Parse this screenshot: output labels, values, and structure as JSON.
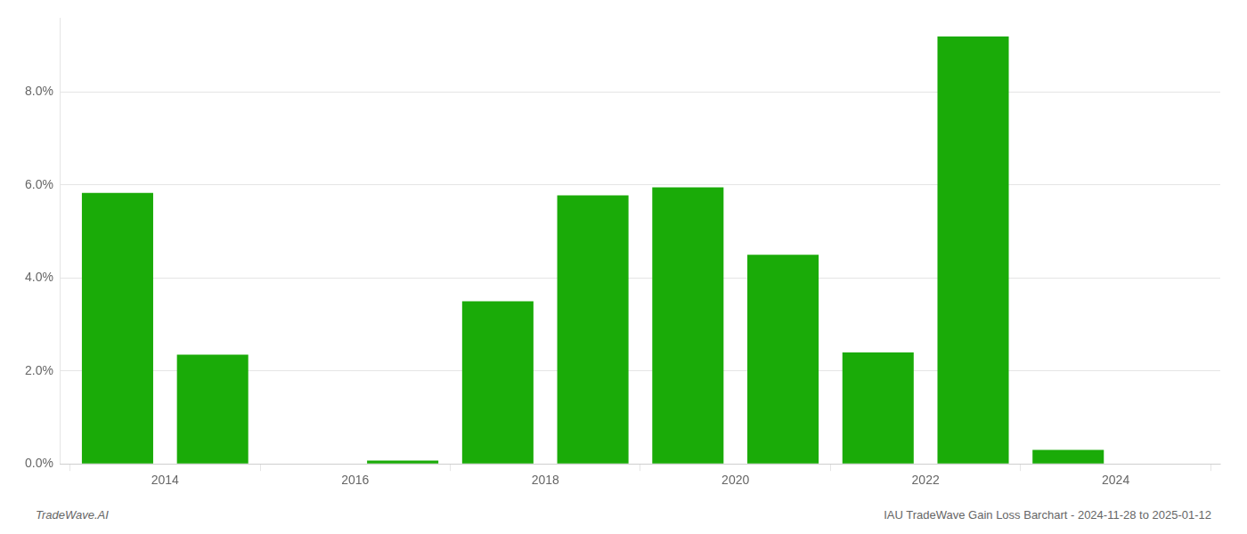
{
  "chart_data": {
    "type": "bar",
    "x": [
      2013,
      2014,
      2015,
      2016,
      2017,
      2018,
      2019,
      2020,
      2021,
      2022,
      2023,
      2024
    ],
    "values": [
      0.0583,
      0.0235,
      0.0,
      0.0007,
      0.035,
      0.0578,
      0.0595,
      0.045,
      0.024,
      0.092,
      0.003,
      0.0
    ],
    "color": "#1aab08",
    "xlim": [
      2012.4,
      2024.6
    ],
    "xticks": [
      {
        "value": 2013.5,
        "label": "2014"
      },
      {
        "value": 2015.5,
        "label": "2016"
      },
      {
        "value": 2017.5,
        "label": "2018"
      },
      {
        "value": 2019.5,
        "label": "2020"
      },
      {
        "value": 2021.5,
        "label": "2022"
      },
      {
        "value": 2023.5,
        "label": "2024"
      }
    ],
    "ylim": [
      0,
      0.096
    ],
    "yticks": [
      {
        "value": 0.0,
        "label": "0.0%"
      },
      {
        "value": 0.02,
        "label": "2.0%"
      },
      {
        "value": 0.04,
        "label": "4.0%"
      },
      {
        "value": 0.06,
        "label": "6.0%"
      },
      {
        "value": 0.08,
        "label": "8.0%"
      }
    ],
    "grid": true,
    "annotations": [
      "TradeWave.AI",
      "IAU TradeWave Gain Loss Barchart - 2024-11-28 to 2025-01-12"
    ]
  }
}
